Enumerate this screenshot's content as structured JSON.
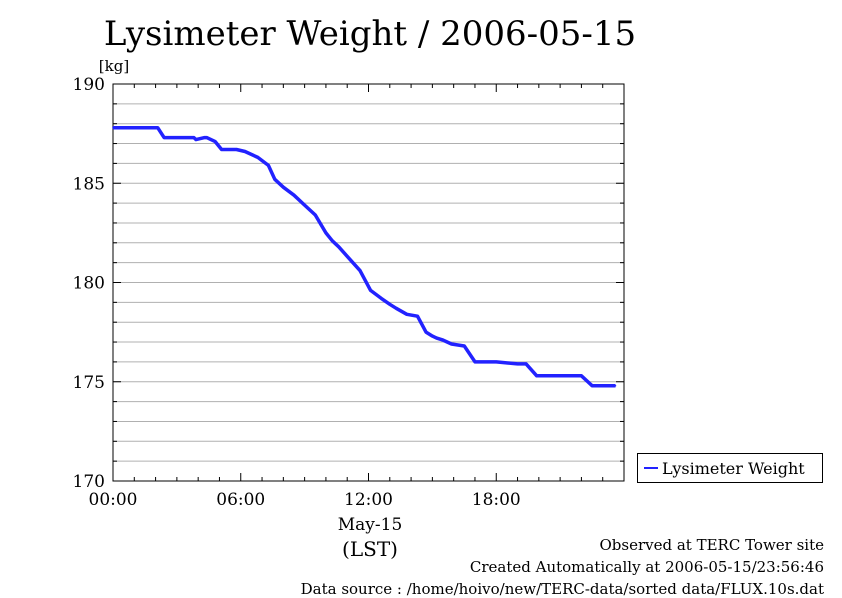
{
  "chart_data": {
    "type": "line",
    "title": "Lysimeter Weight / 2006-05-15",
    "ylabel": "[kg]",
    "xlabel_date": "May-15",
    "xlabel_unit": "(LST)",
    "xlim": [
      0,
      24
    ],
    "ylim": [
      170,
      190
    ],
    "x_ticks": [
      {
        "value": 0,
        "label": "00:00"
      },
      {
        "value": 6,
        "label": "06:00"
      },
      {
        "value": 12,
        "label": "12:00"
      },
      {
        "value": 18,
        "label": "18:00"
      }
    ],
    "y_ticks": [
      {
        "value": 170,
        "label": "170"
      },
      {
        "value": 175,
        "label": "175"
      },
      {
        "value": 180,
        "label": "180"
      },
      {
        "value": 185,
        "label": "185"
      },
      {
        "value": 190,
        "label": "190"
      }
    ],
    "y_minor_step": 1,
    "x_minor_step": 1,
    "grid": true,
    "legend": "right",
    "series": [
      {
        "name": "Lysimeter Weight",
        "color": "#2222ff",
        "x": [
          0,
          2.1,
          2.4,
          2.8,
          2.9,
          3.8,
          3.9,
          4.3,
          4.4,
          4.8,
          5.1,
          5.8,
          6.2,
          6.8,
          7.3,
          7.6,
          8.0,
          8.5,
          9.0,
          9.5,
          10.0,
          10.3,
          10.6,
          11.1,
          11.6,
          12.1,
          12.6,
          13.0,
          13.3,
          13.8,
          14.3,
          14.7,
          15.0,
          15.2,
          15.5,
          15.9,
          16.5,
          17.0,
          17.3,
          17.6,
          18.0,
          19.0,
          19.4,
          19.9,
          20.3,
          21.0,
          21.5,
          22.0,
          22.5,
          22.7,
          23.1,
          23.6
        ],
        "y": [
          187.8,
          187.8,
          187.3,
          187.3,
          187.3,
          187.3,
          187.2,
          187.3,
          187.3,
          187.1,
          186.7,
          186.7,
          186.6,
          186.3,
          185.9,
          185.2,
          184.8,
          184.4,
          183.9,
          183.4,
          182.5,
          182.1,
          181.8,
          181.2,
          180.6,
          179.6,
          179.2,
          178.9,
          178.7,
          178.4,
          178.3,
          177.5,
          177.3,
          177.2,
          177.1,
          176.9,
          176.8,
          176.0,
          176.0,
          176.0,
          176.0,
          175.9,
          175.9,
          175.3,
          175.3,
          175.3,
          175.3,
          175.3,
          174.8,
          174.8,
          174.8,
          174.8
        ]
      }
    ]
  },
  "footer": {
    "line1": "Observed at TERC Tower site",
    "line2": "Created Automatically at 2006-05-15/23:56:46",
    "line3": "Data source : /home/hoivo/new/TERC-data/sorted  data/FLUX.10s.dat"
  }
}
